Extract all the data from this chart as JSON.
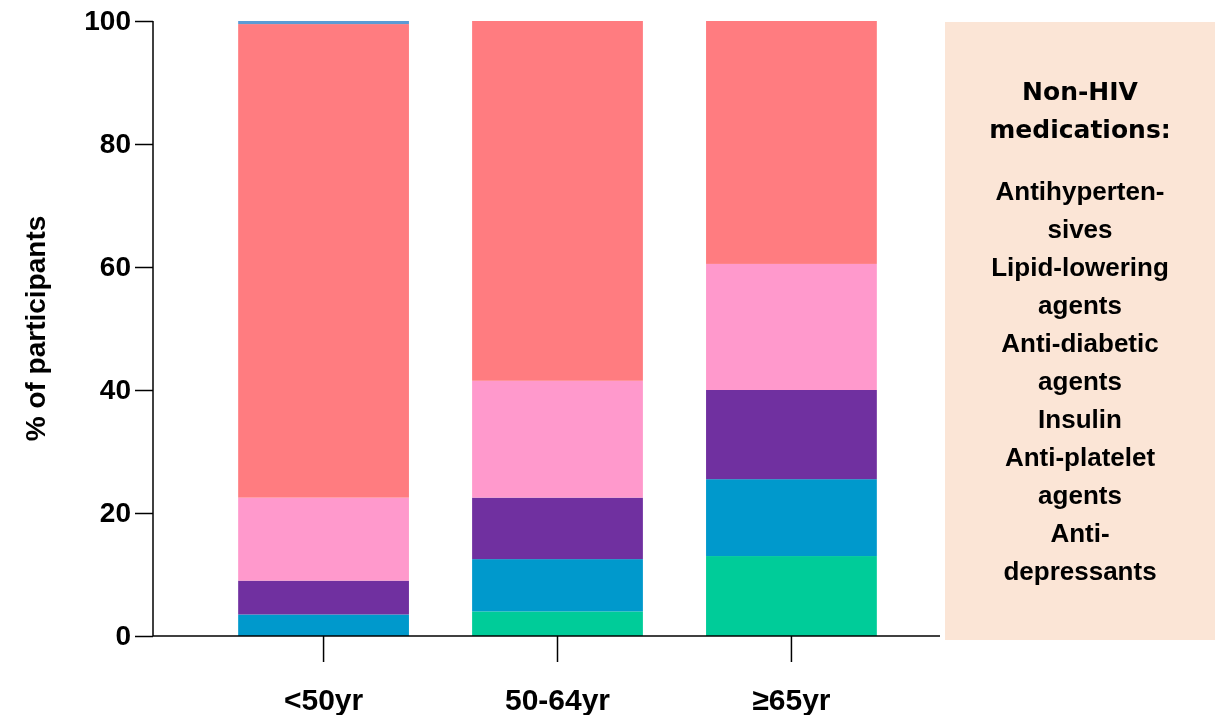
{
  "chart_data": {
    "type": "bar",
    "stacked": true,
    "ylabel": "% of participants",
    "categories": [
      "<50yr",
      "50-64yr",
      "≥65yr"
    ],
    "ylim": [
      0,
      100
    ],
    "yticks": [
      0,
      20,
      40,
      60,
      80,
      100
    ],
    "grid": false,
    "series": [
      {
        "color": "#00cc99",
        "values": [
          null,
          4,
          13
        ]
      },
      {
        "color": "#0099cc",
        "values": [
          3.5,
          8.5,
          12.5
        ]
      },
      {
        "color": "#7030a0",
        "values": [
          5.5,
          10,
          14.5
        ]
      },
      {
        "color": "#ff99cc",
        "values": [
          13.5,
          19,
          20.5
        ]
      },
      {
        "color": "#ff7c80",
        "values": [
          77,
          58.5,
          39.5
        ]
      },
      {
        "color": "#5b9bd5",
        "values": [
          0.5,
          null,
          null
        ]
      }
    ],
    "annotations": [
      "Non-HIV medications:",
      "Antihyperten-sives",
      "Lipid-lowering agents",
      "Anti-diabetic agents",
      "Insulin",
      "Anti-platelet agents",
      "Anti-depressants"
    ]
  }
}
